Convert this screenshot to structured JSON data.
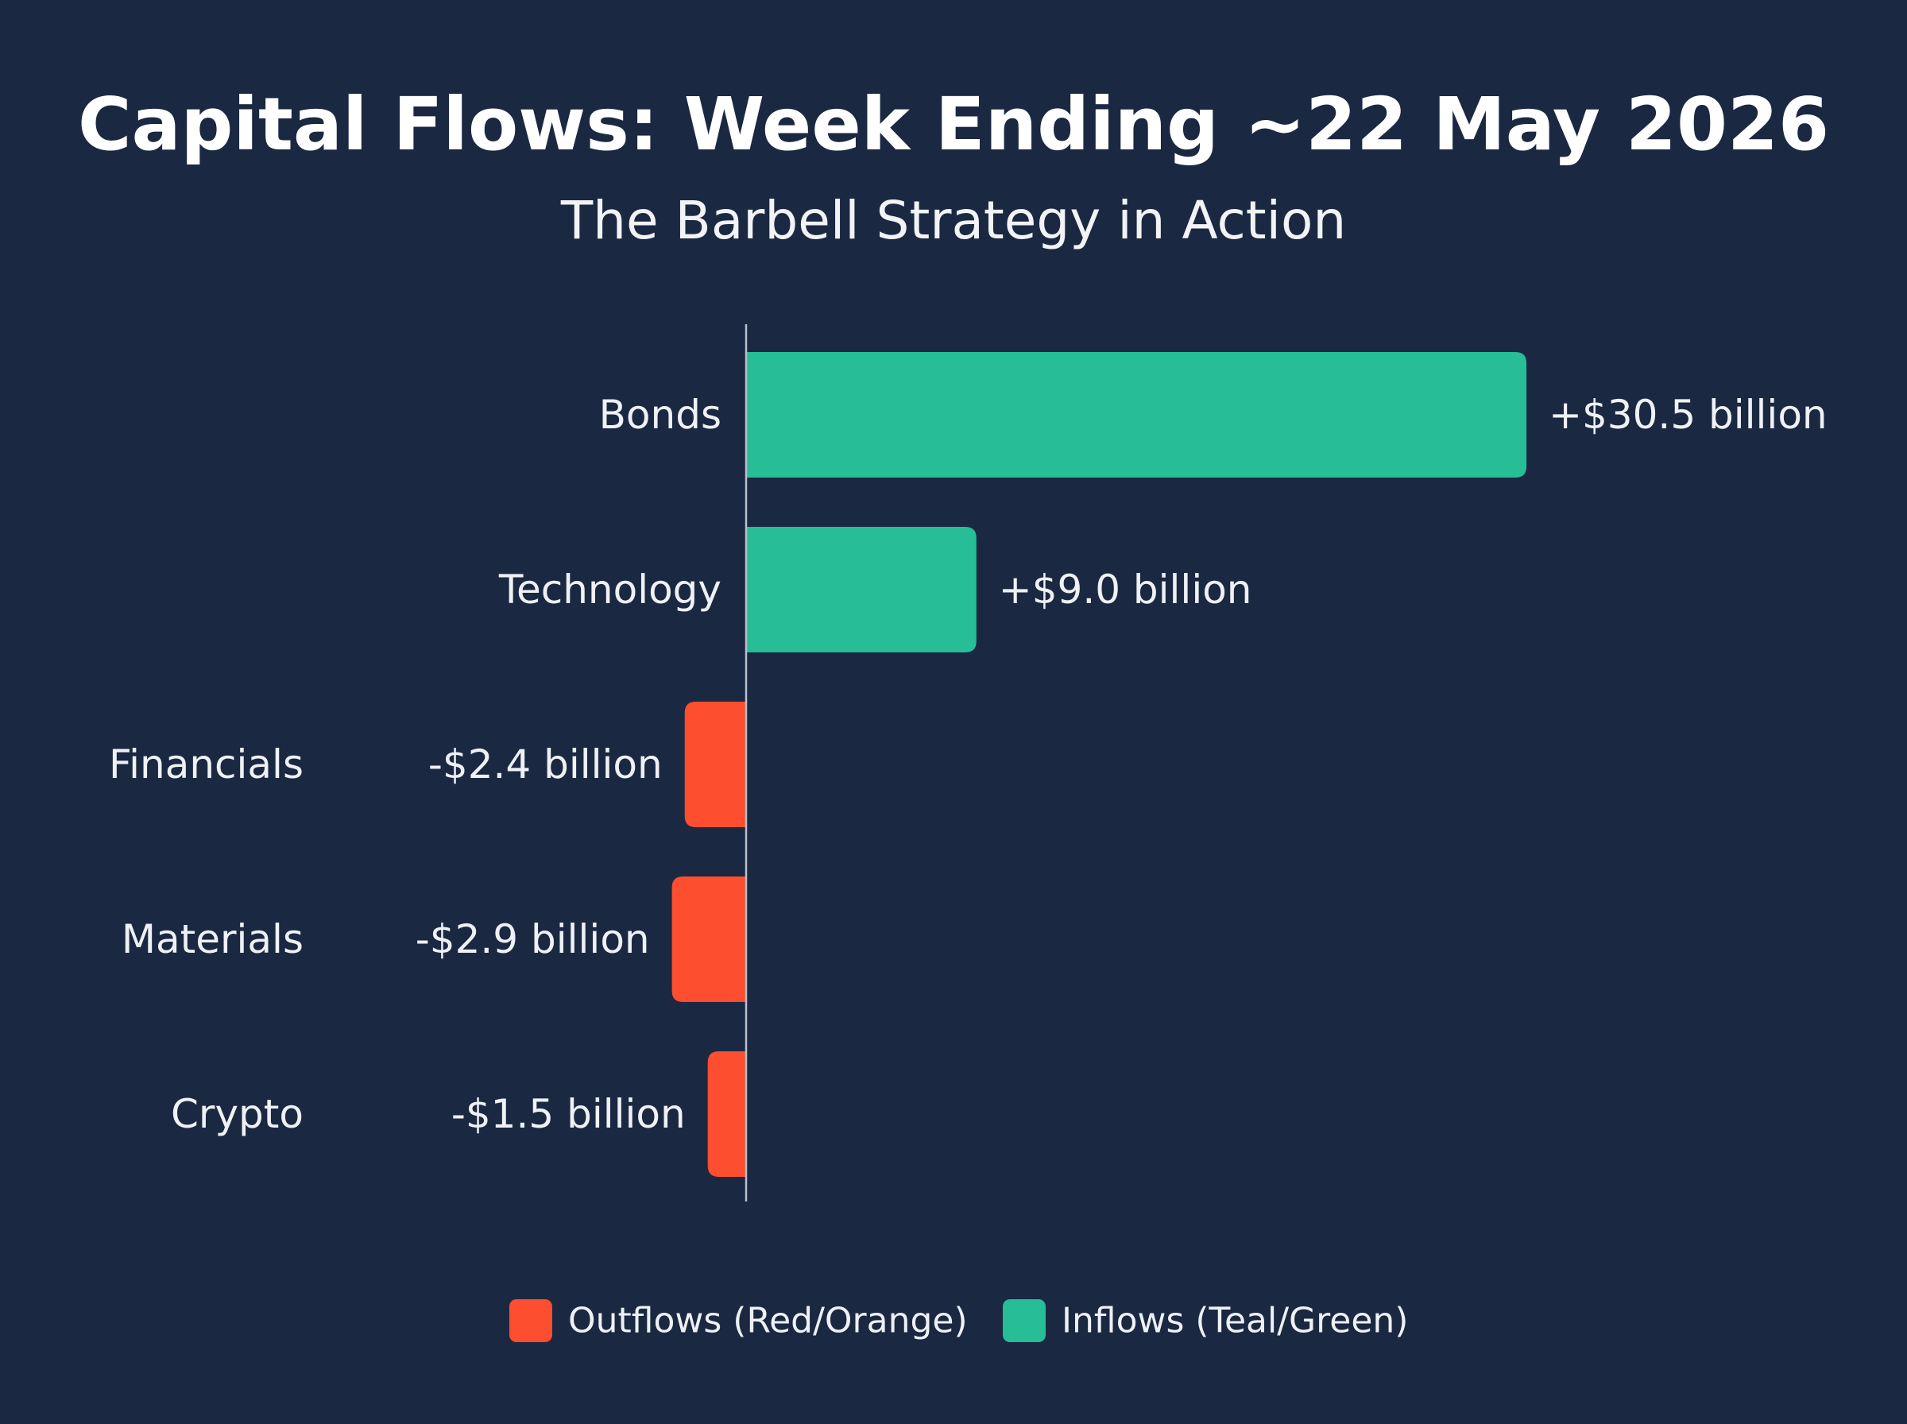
{
  "chart_data": {
    "type": "bar",
    "orientation": "horizontal",
    "title": "Capital Flows: Week Ending ~22 May 2026",
    "subtitle": "The Barbell Strategy in Action",
    "categories": [
      "Bonds",
      "Technology",
      "Financials",
      "Materials",
      "Crypto"
    ],
    "values": [
      30.5,
      9.0,
      -2.4,
      -2.9,
      -1.5
    ],
    "value_labels": [
      "+$30.5 billion",
      "+$9.0 billion",
      "-$2.4 billion",
      "-$2.9 billion",
      "-$1.5 billion"
    ],
    "unit": "billion USD",
    "xlabel": "",
    "ylabel": "",
    "xlim": [
      -2.9,
      30.5
    ],
    "grid": false,
    "legend": {
      "position": "bottom",
      "entries": [
        {
          "label": "Outflows (Red/Orange)",
          "color": "#fd4e2f"
        },
        {
          "label": "Inflows (Teal/Green)",
          "color": "#27bd97"
        }
      ]
    },
    "colors": {
      "background": "#1b2842",
      "positive": "#27bd97",
      "negative": "#fd4e2f",
      "axis": "#b9c0cc",
      "text": "#eef1f5"
    }
  }
}
